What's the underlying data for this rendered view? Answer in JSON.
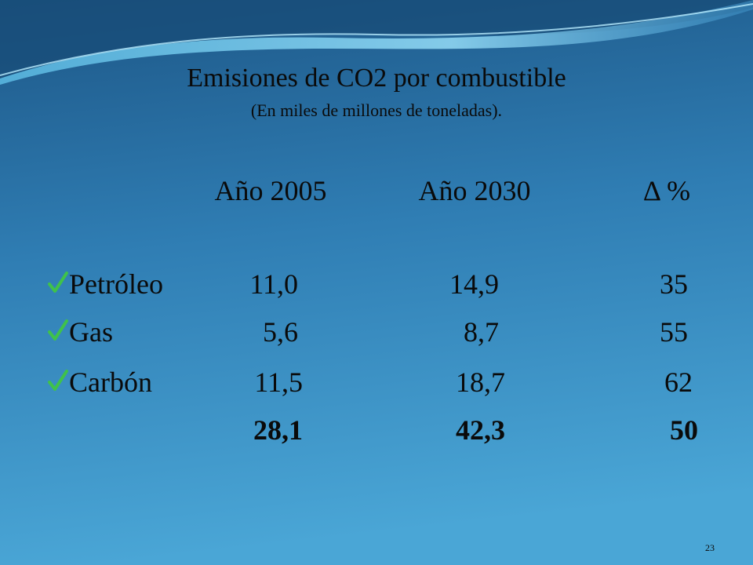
{
  "title": "Emisiones de CO2 por combustible",
  "subtitle": "(En miles de millones de toneladas).",
  "table": {
    "header": [
      "Año 2005",
      "Año 2030",
      "Δ  %"
    ],
    "rows": [
      [
        "Petróleo",
        "11,0",
        "14,9",
        "35"
      ],
      [
        "Gas",
        "5,6",
        "8,7",
        "55"
      ],
      [
        "Carbón",
        "11,5",
        "18,7",
        "62"
      ]
    ],
    "totals": [
      "28,1",
      "42,3",
      "50"
    ]
  },
  "page_number": "23"
}
